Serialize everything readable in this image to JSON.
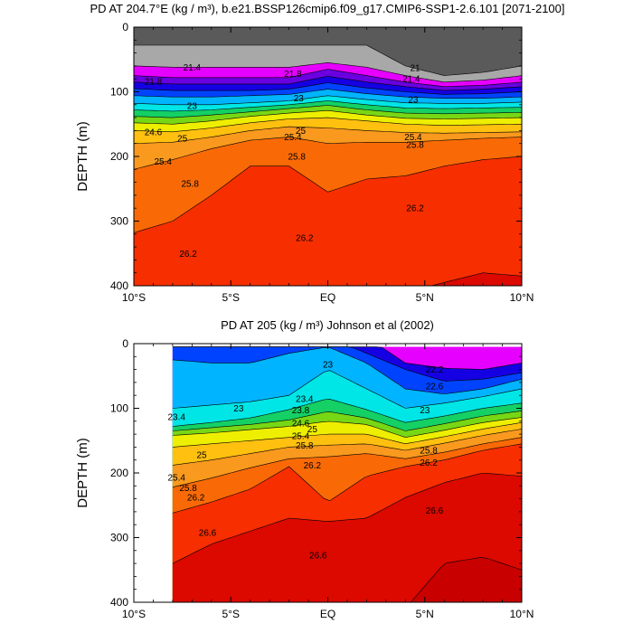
{
  "figure": {
    "panels": [
      {
        "title": "PD AT 204.7°E (kg / m³), b.e21.BSSP126cmip6.f09_g17.CMIP6-SSP1-2.6.101 [2071-2100]"
      },
      {
        "title": "PD AT 205 (kg / m³) Johnson et al (2002)"
      }
    ]
  },
  "chart_data": [
    {
      "type": "contour",
      "title": "PD AT 204.7°E (kg / m³), b.e21.BSSP126cmip6.f09_g17.CMIP6-SSP1-2.6.101 [2071-2100]",
      "xlabel": "",
      "ylabel": "DEPTH (m)",
      "xlim": [
        -10,
        10
      ],
      "ylim": [
        400,
        0
      ],
      "x_ticks": [
        -10,
        -5,
        0,
        5,
        10
      ],
      "x_tick_labels": [
        "10°S",
        "5°S",
        "EQ",
        "5°N",
        "10°N"
      ],
      "y_ticks": [
        0,
        100,
        200,
        300,
        400
      ],
      "y_tick_labels": [
        "0",
        "100",
        "200",
        "300",
        "400"
      ],
      "x_data_min": -10,
      "x_data_max": 10,
      "levels": [
        21,
        21.4,
        21.8,
        22.2,
        22.6,
        23,
        23.4,
        23.8,
        24.2,
        24.6,
        25,
        25.4,
        25.8,
        26.2,
        26.6
      ],
      "isopycnal_depths": {
        "lats": [
          -10,
          -8,
          -6,
          -4,
          -2,
          0,
          2,
          4,
          6,
          8,
          10
        ],
        "21": [
          28,
          28,
          28,
          28,
          28,
          28,
          28,
          60,
          75,
          70,
          60
        ],
        "21.4": [
          60,
          62,
          62,
          62,
          62,
          55,
          62,
          75,
          85,
          82,
          75
        ],
        "21.8": [
          75,
          78,
          78,
          78,
          78,
          65,
          75,
          85,
          92,
          90,
          85
        ],
        "22.2": [
          85,
          88,
          88,
          88,
          88,
          76,
          85,
          92,
          98,
          96,
          92
        ],
        "22.6": [
          95,
          98,
          98,
          98,
          96,
          86,
          94,
          100,
          104,
          103,
          100
        ],
        "23": [
          106,
          108,
          108,
          106,
          104,
          96,
          103,
          108,
          110,
          110,
          108
        ],
        "23.4": [
          118,
          120,
          120,
          117,
          114,
          106,
          112,
          117,
          118,
          118,
          116
        ],
        "23.8": [
          128,
          130,
          128,
          124,
          120,
          114,
          120,
          125,
          126,
          125,
          124
        ],
        "24.2": [
          138,
          140,
          136,
          131,
          126,
          121,
          128,
          133,
          134,
          133,
          132
        ],
        "24.6": [
          148,
          150,
          145,
          138,
          133,
          129,
          136,
          141,
          142,
          141,
          140
        ],
        "25": [
          160,
          162,
          156,
          148,
          142,
          140,
          145,
          150,
          152,
          151,
          150
        ],
        "25.4": [
          180,
          178,
          170,
          160,
          154,
          156,
          160,
          163,
          164,
          163,
          162
        ],
        "25.8": [
          220,
          205,
          188,
          175,
          170,
          180,
          178,
          178,
          175,
          172,
          170
        ],
        "26.2": [
          318,
          300,
          260,
          215,
          215,
          255,
          235,
          230,
          215,
          205,
          200
        ],
        "26.6": [
          410,
          410,
          410,
          410,
          410,
          410,
          410,
          410,
          395,
          380,
          385
        ]
      },
      "contour_labels": [
        {
          "text": "21.4",
          "lat": -7,
          "depth": 62
        },
        {
          "text": "21.8",
          "lat": -9,
          "depth": 84
        },
        {
          "text": "21.8",
          "lat": -1.8,
          "depth": 72
        },
        {
          "text": "21",
          "lat": 4.5,
          "depth": 63
        },
        {
          "text": "21.4",
          "lat": 4.3,
          "depth": 80
        },
        {
          "text": "23",
          "lat": -7,
          "depth": 122
        },
        {
          "text": "23",
          "lat": -1.5,
          "depth": 110
        },
        {
          "text": "23",
          "lat": 4.4,
          "depth": 112
        },
        {
          "text": "24.6",
          "lat": -9,
          "depth": 162
        },
        {
          "text": "25",
          "lat": -7.5,
          "depth": 172
        },
        {
          "text": "25",
          "lat": -1.4,
          "depth": 160
        },
        {
          "text": "25.4",
          "lat": -1.8,
          "depth": 170
        },
        {
          "text": "25.4",
          "lat": 4.4,
          "depth": 170
        },
        {
          "text": "25.8",
          "lat": 4.5,
          "depth": 182
        },
        {
          "text": "25.4",
          "lat": -8.5,
          "depth": 208
        },
        {
          "text": "25.8",
          "lat": -1.6,
          "depth": 200
        },
        {
          "text": "25.8",
          "lat": -7.1,
          "depth": 242
        },
        {
          "text": "26.2",
          "lat": -7.2,
          "depth": 350
        },
        {
          "text": "26.2",
          "lat": -1.2,
          "depth": 326
        },
        {
          "text": "26.2",
          "lat": 4.5,
          "depth": 280
        }
      ]
    },
    {
      "type": "contour",
      "title": "PD AT 205 (kg / m³) Johnson et al (2002)",
      "xlabel": "",
      "ylabel": "DEPTH (m)",
      "xlim": [
        -10,
        10
      ],
      "ylim": [
        400,
        0
      ],
      "x_ticks": [
        -10,
        -5,
        0,
        5,
        10
      ],
      "x_tick_labels": [
        "10°S",
        "5°S",
        "EQ",
        "5°N",
        "10°N"
      ],
      "y_ticks": [
        0,
        100,
        200,
        300,
        400
      ],
      "y_tick_labels": [
        "0",
        "100",
        "200",
        "300",
        "400"
      ],
      "x_data_min": -8,
      "x_data_max": 10,
      "depth_data_min": 5,
      "levels": [
        21.8,
        22.2,
        22.6,
        23,
        23.4,
        23.8,
        24.2,
        24.6,
        25,
        25.4,
        25.8,
        26.2,
        26.6,
        27
      ],
      "isopycnal_depths": {
        "lats": [
          -8,
          -6,
          -4,
          -2,
          0,
          2,
          4,
          6,
          8,
          10
        ],
        "22.2": [
          -10,
          -10,
          -10,
          -10,
          -10,
          -10,
          30,
          38,
          40,
          30
        ],
        "22.6": [
          -10,
          -10,
          -10,
          -10,
          -10,
          15,
          40,
          58,
          55,
          45
        ],
        "23": [
          25,
          30,
          30,
          15,
          5,
          30,
          70,
          78,
          70,
          55
        ],
        "23.4": [
          100,
          95,
          90,
          80,
          40,
          70,
          100,
          92,
          82,
          70
        ],
        "23.8": [
          128,
          122,
          115,
          102,
          85,
          102,
          122,
          112,
          100,
          92
        ],
        "24.2": [
          135,
          130,
          125,
          118,
          105,
          115,
          135,
          124,
          112,
          104
        ],
        "24.6": [
          142,
          138,
          133,
          128,
          120,
          125,
          145,
          134,
          122,
          114
        ],
        "25": [
          160,
          155,
          150,
          145,
          140,
          140,
          155,
          144,
          132,
          122
        ],
        "25.4": [
          188,
          180,
          170,
          160,
          157,
          155,
          165,
          154,
          142,
          132
        ],
        "25.8": [
          222,
          208,
          192,
          178,
          175,
          170,
          178,
          168,
          155,
          145
        ],
        "26.2": [
          262,
          245,
          225,
          190,
          245,
          205,
          190,
          180,
          165,
          155
        ],
        "26.6": [
          340,
          310,
          290,
          270,
          275,
          270,
          238,
          215,
          200,
          205
        ],
        "27": [
          410,
          410,
          410,
          410,
          410,
          410,
          410,
          340,
          330,
          350
        ]
      },
      "contour_labels": [
        {
          "text": "22.2",
          "lat": 5.5,
          "depth": 40
        },
        {
          "text": "22.6",
          "lat": 5.5,
          "depth": 66
        },
        {
          "text": "23",
          "lat": -4.6,
          "depth": 100
        },
        {
          "text": "23",
          "lat": 0,
          "depth": 32
        },
        {
          "text": "23",
          "lat": 5,
          "depth": 103
        },
        {
          "text": "23.4",
          "lat": -7.8,
          "depth": 113
        },
        {
          "text": "23.4",
          "lat": -1.2,
          "depth": 85
        },
        {
          "text": "23.8",
          "lat": -1.4,
          "depth": 103
        },
        {
          "text": "24.6",
          "lat": -1.4,
          "depth": 123
        },
        {
          "text": "25",
          "lat": -6.5,
          "depth": 172
        },
        {
          "text": "25",
          "lat": -0.8,
          "depth": 132
        },
        {
          "text": "25.4",
          "lat": -1.4,
          "depth": 143
        },
        {
          "text": "25.4",
          "lat": -7.8,
          "depth": 207
        },
        {
          "text": "25.8",
          "lat": -1.2,
          "depth": 157
        },
        {
          "text": "25.8",
          "lat": -7.2,
          "depth": 223
        },
        {
          "text": "25.8",
          "lat": 5.2,
          "depth": 165
        },
        {
          "text": "26.2",
          "lat": -6.8,
          "depth": 238
        },
        {
          "text": "26.2",
          "lat": -0.8,
          "depth": 188
        },
        {
          "text": "26.2",
          "lat": 5.2,
          "depth": 184
        },
        {
          "text": "26.6",
          "lat": -6.2,
          "depth": 292
        },
        {
          "text": "26.6",
          "lat": -0.5,
          "depth": 327
        },
        {
          "text": "26.6",
          "lat": 5.5,
          "depth": 258
        }
      ]
    }
  ]
}
